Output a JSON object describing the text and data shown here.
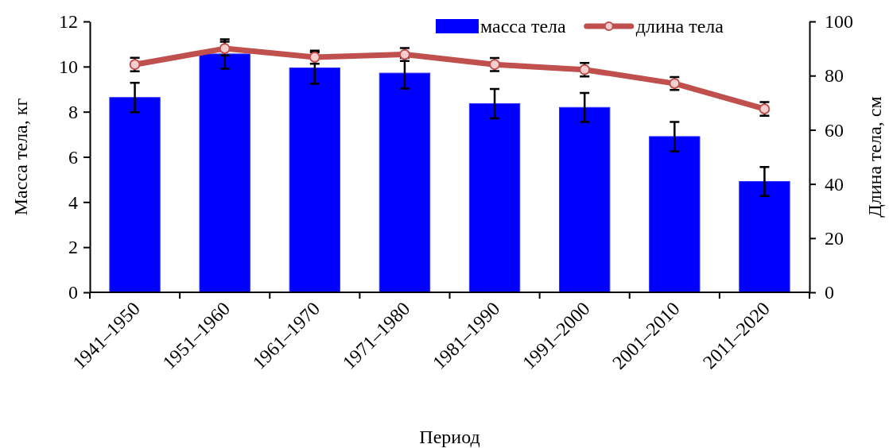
{
  "chart_data": {
    "type": "bar",
    "xlabel": "Период",
    "ylabel": "Масса тела, кг",
    "y2label": "Длина тела, см",
    "categories": [
      "1941–1950",
      "1951–1960",
      "1961–1970",
      "1971–1980",
      "1981–1990",
      "1991–2000",
      "2001–2010",
      "2011–2020"
    ],
    "series": [
      {
        "name": "масса тела",
        "color": "#0000ff",
        "values": [
          8.63,
          10.56,
          9.94,
          9.71,
          8.36,
          8.19,
          6.9,
          4.91
        ],
        "errors": [
          0.65,
          0.65,
          0.7,
          0.68,
          0.65,
          0.64,
          0.65,
          0.64
        ]
      },
      {
        "name": "длина тела",
        "type": "line",
        "axis": "y2",
        "color": "#c0504d",
        "marker": "circle",
        "values": [
          84.1,
          90.0,
          86.8,
          87.8,
          84.1,
          82.2,
          77.1,
          67.7
        ],
        "errors": [
          2.5,
          2.5,
          2.4,
          2.4,
          2.4,
          2.5,
          2.4,
          2.5
        ]
      }
    ],
    "ylim": [
      0,
      12
    ],
    "yticks": [
      0,
      2,
      4,
      6,
      8,
      10,
      12
    ],
    "y2lim": [
      0,
      100
    ],
    "y2ticks": [
      0,
      20,
      40,
      60,
      80,
      100
    ],
    "legend": "top right",
    "grid": false
  }
}
